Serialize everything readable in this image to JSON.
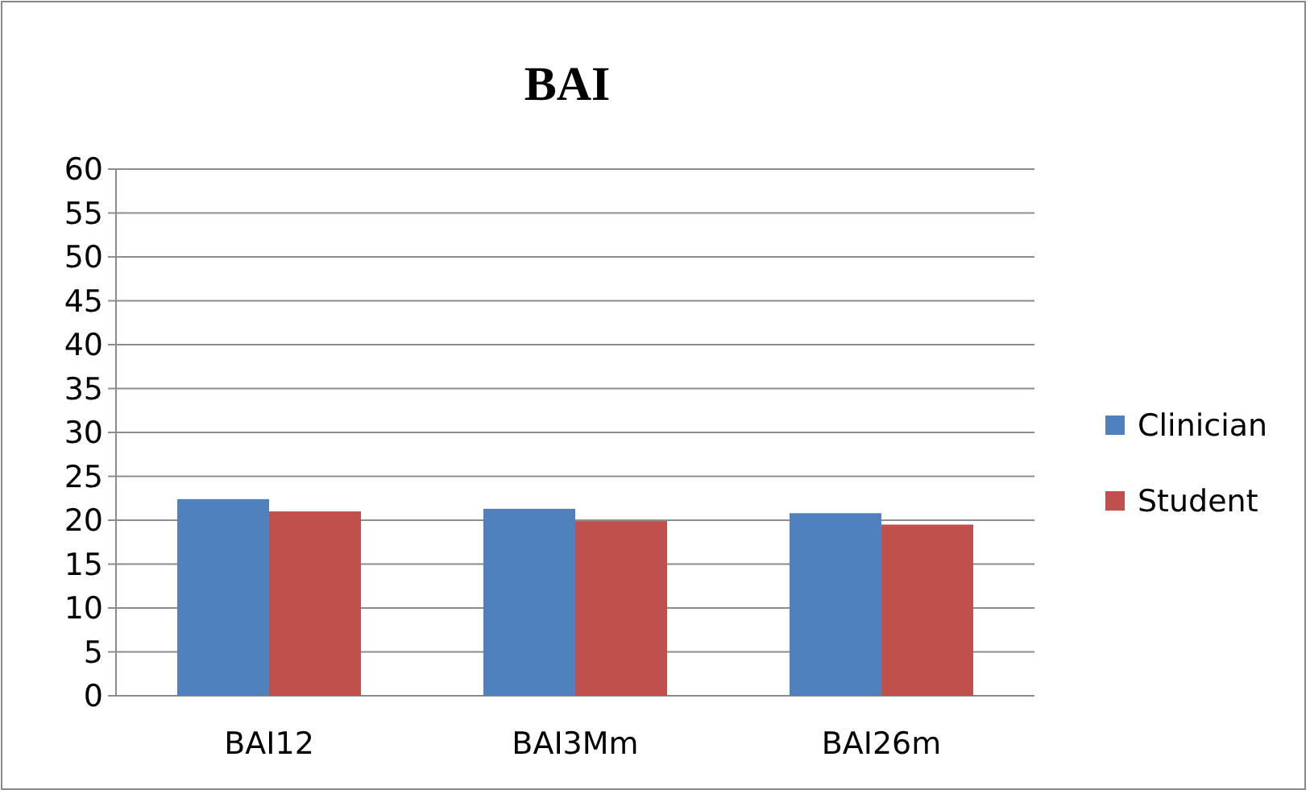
{
  "chart_data": {
    "type": "bar",
    "title": "BAI",
    "categories": [
      "BAI12",
      "BAI3Mm",
      "BAI26m"
    ],
    "series": [
      {
        "name": "Clinician",
        "color": "#4f81bd",
        "values": [
          22.4,
          21.3,
          20.8
        ]
      },
      {
        "name": "Student",
        "color": "#c0504d",
        "values": [
          21.0,
          19.9,
          19.5
        ]
      }
    ],
    "ylim": [
      0,
      60
    ],
    "yticks": [
      0,
      5,
      10,
      15,
      20,
      25,
      30,
      35,
      40,
      45,
      50,
      55,
      60
    ],
    "grid": "y",
    "legend": "right"
  }
}
